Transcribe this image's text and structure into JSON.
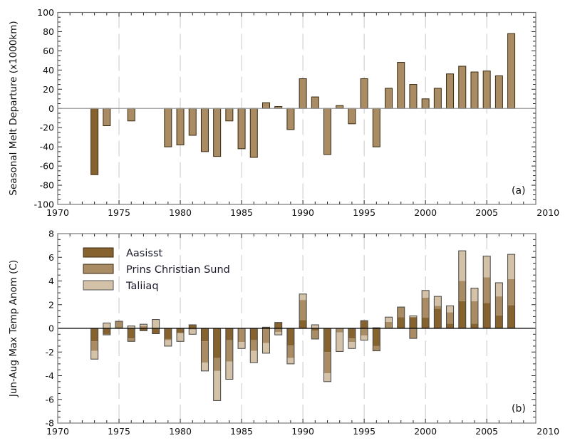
{
  "colors": {
    "aasiaat": "#86622f",
    "prins": "#a98c64",
    "taliiaq": "#d4c2a8",
    "melt": "#a98c64",
    "melt_highlight": "#86622f"
  },
  "chart_data": [
    {
      "type": "bar",
      "panel_label": "(a)",
      "ylabel": "Seasonal Melt Departure (x1000km)",
      "xlabel": "",
      "xlim": [
        1970,
        2009
      ],
      "ylim": [
        -100,
        100
      ],
      "xticks": [
        1970,
        1975,
        1980,
        1985,
        1990,
        1995,
        2000,
        2005,
        2010
      ],
      "yticks": [
        -100,
        -80,
        -60,
        -40,
        -20,
        0,
        20,
        40,
        60,
        80,
        100
      ],
      "grid": "dashed vertical at 5-year ticks",
      "highlight_year": 1973,
      "x": [
        1973,
        1974,
        1976,
        1979,
        1980,
        1981,
        1982,
        1983,
        1984,
        1985,
        1986,
        1987,
        1988,
        1989,
        1990,
        1991,
        1992,
        1993,
        1994,
        1995,
        1996,
        1997,
        1998,
        1999,
        2000,
        2001,
        2002,
        2003,
        2004,
        2005,
        2006,
        2007
      ],
      "values": [
        -69,
        -18,
        -13,
        -40,
        -38,
        -28,
        -45,
        -50,
        -13,
        -42,
        -51,
        6,
        2,
        -22,
        31,
        12,
        -48,
        3,
        -16,
        31,
        -40,
        21,
        48,
        25,
        10,
        21,
        36,
        44,
        38,
        39,
        34,
        78
      ]
    },
    {
      "type": "bar",
      "stacked": true,
      "panel_label": "(b)",
      "ylabel": "Jun-Aug Max Temp Anom (C)",
      "xlabel": "",
      "xlim": [
        1970,
        2009
      ],
      "ylim": [
        -8,
        8
      ],
      "xticks": [
        1970,
        1975,
        1980,
        1985,
        1990,
        1995,
        2000,
        2005,
        2010
      ],
      "yticks": [
        -8,
        -6,
        -4,
        -2,
        0,
        2,
        4,
        6,
        8
      ],
      "grid": "dashed vertical at 5-year ticks",
      "legend_position": "top-left",
      "x": [
        1973,
        1974,
        1975,
        1976,
        1977,
        1978,
        1979,
        1980,
        1981,
        1982,
        1983,
        1984,
        1985,
        1986,
        1987,
        1988,
        1989,
        1990,
        1991,
        1992,
        1993,
        1994,
        1995,
        1996,
        1997,
        1998,
        1999,
        2000,
        2001,
        2002,
        2003,
        2004,
        2005,
        2006,
        2007
      ],
      "series": [
        {
          "name": "Aasisst",
          "values": [
            -1.1,
            -0.5,
            0.1,
            -0.85,
            -0.2,
            -0.45,
            -0.9,
            -0.4,
            0.3,
            -1.1,
            -2.5,
            -1.0,
            -0.05,
            -1.0,
            0.1,
            0.5,
            -1.45,
            0.7,
            -0.2,
            -2.0,
            -0.05,
            -0.85,
            0.65,
            -1.5,
            0,
            0.95,
            0.95,
            0.9,
            1.65,
            0.4,
            2.3,
            0.4,
            2.15,
            1.1,
            1.95
          ]
        },
        {
          "name": "Prins Christian Sund",
          "values": [
            -0.8,
            -0.05,
            0.5,
            -0.25,
            0.2,
            0,
            -0.1,
            0,
            -0.1,
            -1.8,
            -1.1,
            -1.8,
            -1.1,
            -0.9,
            -1.25,
            -0.3,
            -1.05,
            1.7,
            -0.7,
            -1.8,
            -0.3,
            -0.3,
            -0.6,
            -0.4,
            0.55,
            0.85,
            -0.85,
            1.7,
            0.25,
            0.95,
            1.7,
            1.9,
            2.15,
            1.6,
            2.2
          ]
        },
        {
          "name": "Taliiaq",
          "values": [
            -0.7,
            0.45,
            0,
            0.2,
            0.15,
            0.75,
            -0.5,
            -0.7,
            -0.4,
            -0.7,
            -2.5,
            -1.5,
            -0.55,
            -1.0,
            -0.85,
            -0.25,
            -0.5,
            0.5,
            0.3,
            -0.7,
            -1.6,
            -0.55,
            -0.4,
            0.05,
            0.4,
            0,
            0.1,
            0.6,
            0.8,
            0.55,
            2.55,
            1.1,
            1.8,
            1.15,
            2.1
          ]
        }
      ]
    }
  ]
}
